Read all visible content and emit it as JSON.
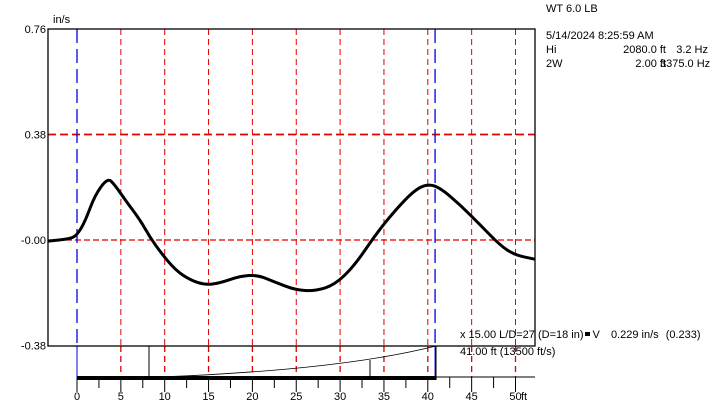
{
  "header": {
    "title": "WT 6.0 LB",
    "datetime": "5/14/2024 8:25:59 AM",
    "rows": [
      {
        "label": "Hi",
        "value": "2080.0 ft",
        "freq": "3.2 Hz"
      },
      {
        "label": "2W",
        "value": "2.00 ft",
        "freq": "3375.0 Hz"
      }
    ]
  },
  "info": {
    "line1": "x 15.00  L/D=27 (D=18 in)",
    "marker": "V",
    "velocity": "0.229 in/s",
    "velocity_paren": "(0.233)",
    "line2": "41.00 ft (13500 ft/s)"
  },
  "chart_data": {
    "type": "line",
    "ylabel": "in/s",
    "xlabel": "ft",
    "ylim": [
      -0.38,
      0.76
    ],
    "xlim": [
      -3.3,
      52.2
    ],
    "yticks": [
      "0.76",
      "0.38",
      "-0.00",
      "-0.38"
    ],
    "ytick_values": [
      0.76,
      0.38,
      0,
      -0.38
    ],
    "xticks": [
      "0",
      "5",
      "10",
      "15",
      "20",
      "25",
      "30",
      "35",
      "40",
      "45",
      "50"
    ],
    "xtick_values": [
      0,
      5,
      10,
      15,
      20,
      25,
      30,
      35,
      40,
      45,
      50
    ],
    "markers_ft": [
      0,
      41.0
    ],
    "series": [
      {
        "name": "velocity",
        "x": [
          -3.3,
          -0.8,
          0,
          0.9,
          2.05,
          3.5,
          4.3,
          5.5,
          7.2,
          8.3,
          9.5,
          11.2,
          12.9,
          14.6,
          16.3,
          18.6,
          20.6,
          22.6,
          24.9,
          27.1,
          29.4,
          31.7,
          34.0,
          36.3,
          38.5,
          40.0,
          41.4,
          43.7,
          46.0,
          48.2,
          49.9,
          52.2
        ],
        "y": [
          -0.004,
          0.004,
          0.018,
          0.065,
          0.162,
          0.224,
          0.199,
          0.144,
          0.072,
          0.011,
          -0.043,
          -0.108,
          -0.144,
          -0.162,
          -0.155,
          -0.13,
          -0.126,
          -0.152,
          -0.18,
          -0.184,
          -0.162,
          -0.09,
          0.018,
          0.108,
          0.18,
          0.202,
          0.188,
          0.126,
          0.054,
          -0.018,
          -0.054,
          -0.069
        ]
      }
    ],
    "colors": {
      "grid": "#e00000",
      "marker": "#0000e0",
      "line": "#000000"
    }
  }
}
